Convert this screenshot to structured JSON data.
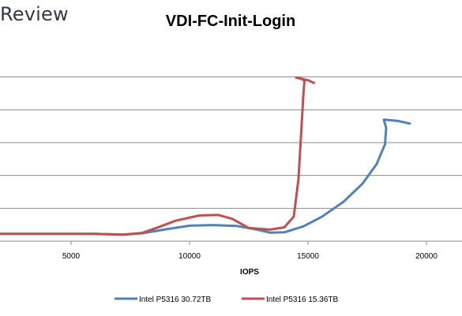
{
  "brand": "Review",
  "chart_data": {
    "type": "line",
    "title": "VDI-FC-Init-Login",
    "xlabel": "IOPS",
    "ylabel": "",
    "xlim": [
      2000,
      21500
    ],
    "ylim": [
      0,
      6
    ],
    "x_ticks": [
      5000,
      10000,
      15000,
      20000
    ],
    "y_gridlines": [
      1,
      2,
      3,
      4,
      5
    ],
    "grid": true,
    "legend": "bottom",
    "series": [
      {
        "name": "Intel P5316 30.72TB",
        "color": "#4f81bd",
        "points": [
          [
            2000,
            0.22
          ],
          [
            4000,
            0.22
          ],
          [
            6000,
            0.22
          ],
          [
            7200,
            0.2
          ],
          [
            8000,
            0.24
          ],
          [
            9000,
            0.36
          ],
          [
            10000,
            0.47
          ],
          [
            11000,
            0.49
          ],
          [
            12000,
            0.46
          ],
          [
            12800,
            0.36
          ],
          [
            13400,
            0.26
          ],
          [
            14000,
            0.27
          ],
          [
            14800,
            0.45
          ],
          [
            15600,
            0.75
          ],
          [
            16500,
            1.2
          ],
          [
            17300,
            1.75
          ],
          [
            17900,
            2.35
          ],
          [
            18250,
            2.95
          ],
          [
            18300,
            3.45
          ],
          [
            18200,
            3.7
          ],
          [
            18800,
            3.66
          ],
          [
            19300,
            3.58
          ]
        ]
      },
      {
        "name": "Intel P5316 15.36TB",
        "color": "#c0504d",
        "points": [
          [
            2000,
            0.22
          ],
          [
            4000,
            0.22
          ],
          [
            6000,
            0.22
          ],
          [
            7200,
            0.2
          ],
          [
            8000,
            0.25
          ],
          [
            8600,
            0.4
          ],
          [
            9400,
            0.62
          ],
          [
            10400,
            0.78
          ],
          [
            11200,
            0.8
          ],
          [
            11800,
            0.68
          ],
          [
            12500,
            0.4
          ],
          [
            13400,
            0.35
          ],
          [
            14000,
            0.42
          ],
          [
            14400,
            0.75
          ],
          [
            14600,
            1.9
          ],
          [
            14800,
            4.4
          ],
          [
            14850,
            4.88
          ],
          [
            14700,
            4.96
          ],
          [
            14500,
            4.98
          ],
          [
            15000,
            4.9
          ],
          [
            15250,
            4.82
          ]
        ]
      }
    ]
  }
}
